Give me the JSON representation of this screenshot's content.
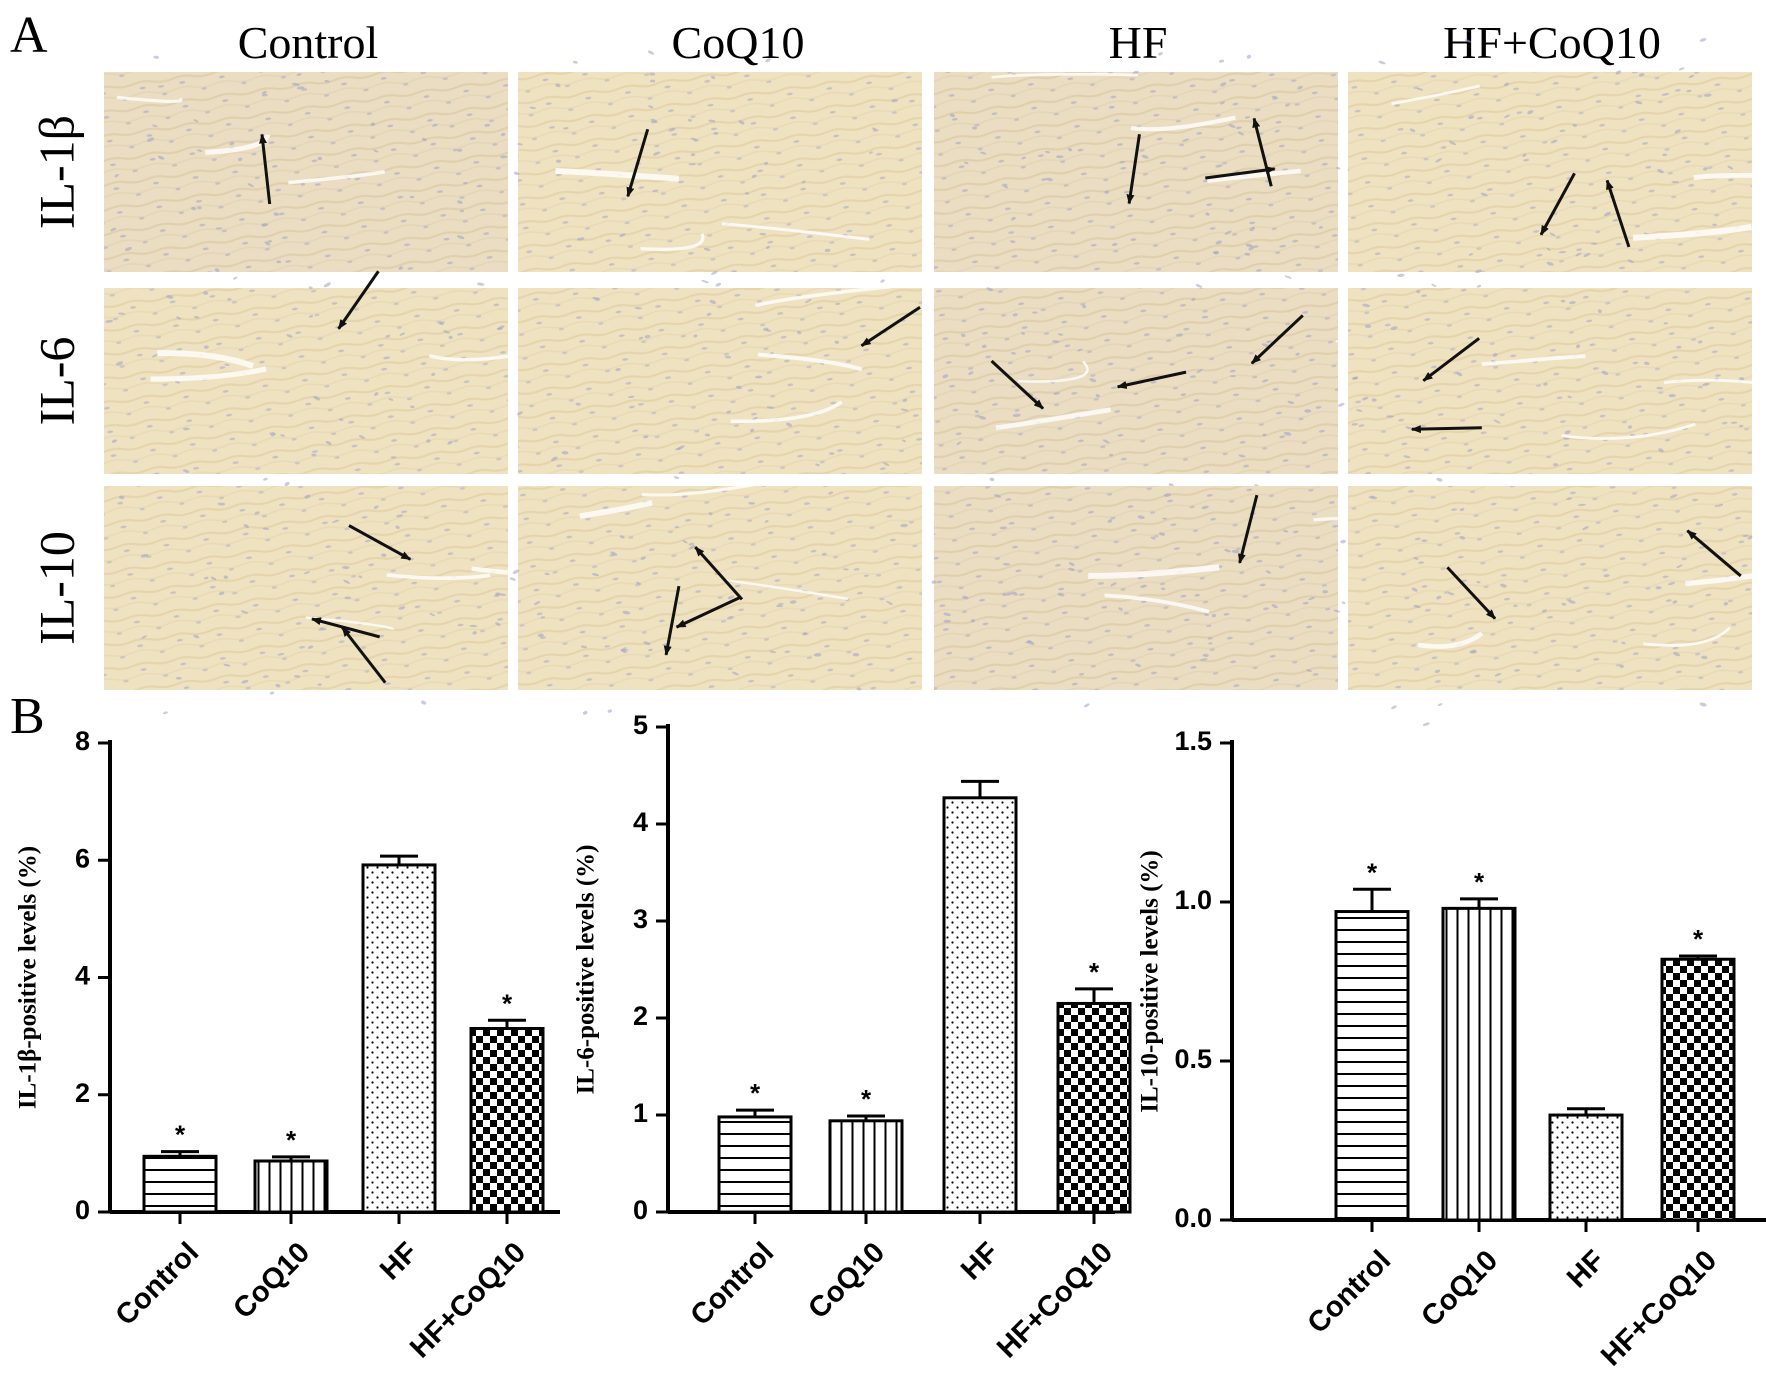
{
  "panels": {
    "a": "A",
    "b": "B"
  },
  "micrographs": {
    "columns": [
      "Control",
      "CoQ10",
      "HF",
      "HF+CoQ10"
    ],
    "rows": [
      "IL-1β",
      "IL-6",
      "IL-10"
    ],
    "colors": {
      "tissue": "#f1e4c6",
      "tissue_dark": "#e3d2ad",
      "nuclei": "#9aa0c8"
    }
  },
  "chart_data": [
    {
      "type": "bar",
      "title": "",
      "xlabel": "",
      "ylabel": "IL-1β-positive levels (%)",
      "categories": [
        "Control",
        "CoQ10",
        "HF",
        "HF+CoQ10"
      ],
      "values": [
        0.95,
        0.87,
        5.92,
        3.13
      ],
      "errors": [
        0.08,
        0.07,
        0.15,
        0.14
      ],
      "significance": [
        "*",
        "*",
        "",
        "*"
      ],
      "ylim": [
        0,
        8
      ],
      "yticks": [
        "0",
        "2",
        "4",
        "6",
        "8"
      ],
      "patterns": [
        "horizontal-lines",
        "vertical-lines",
        "dots",
        "checkerboard"
      ],
      "grid": false
    },
    {
      "type": "bar",
      "title": "",
      "xlabel": "",
      "ylabel": "IL-6-positive levels (%)",
      "categories": [
        "Control",
        "CoQ10",
        "HF",
        "HF+CoQ10"
      ],
      "values": [
        0.98,
        0.94,
        4.27,
        2.15
      ],
      "errors": [
        0.07,
        0.05,
        0.17,
        0.15
      ],
      "significance": [
        "*",
        "*",
        "",
        "*"
      ],
      "ylim": [
        0,
        5
      ],
      "yticks": [
        "0",
        "1",
        "2",
        "3",
        "4",
        "5"
      ],
      "patterns": [
        "horizontal-lines",
        "vertical-lines",
        "dots",
        "checkerboard"
      ],
      "grid": false
    },
    {
      "type": "bar",
      "title": "",
      "xlabel": "",
      "ylabel": "IL-10-positive levels (%)",
      "categories": [
        "Control",
        "CoQ10",
        "HF",
        "HF+CoQ10"
      ],
      "values": [
        0.97,
        0.98,
        0.33,
        0.82
      ],
      "errors": [
        0.07,
        0.03,
        0.02,
        0.01
      ],
      "significance": [
        "*",
        "*",
        "",
        "*"
      ],
      "ylim": [
        0,
        1.5
      ],
      "yticks": [
        "0.0",
        "0.5",
        "1.0",
        "1.5"
      ],
      "patterns": [
        "horizontal-lines",
        "vertical-lines",
        "dots",
        "checkerboard"
      ],
      "grid": false
    }
  ]
}
